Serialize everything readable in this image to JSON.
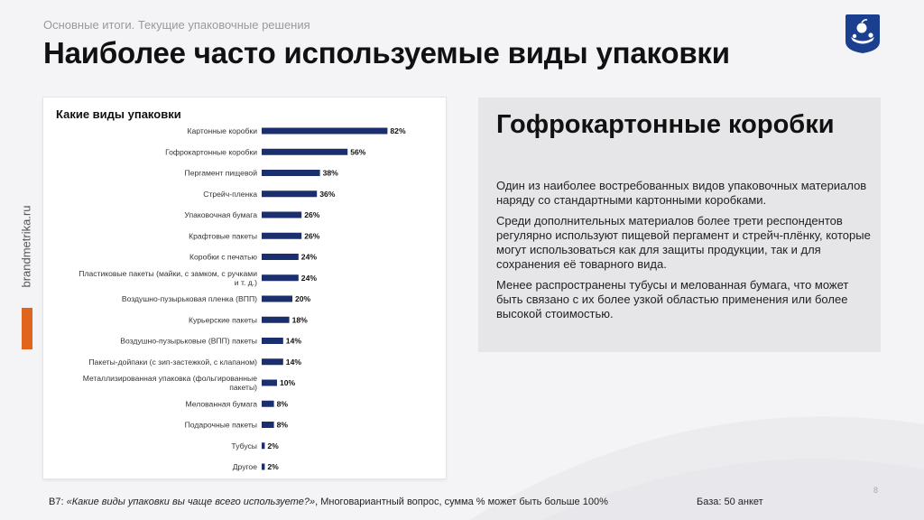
{
  "header": {
    "subtitle": "Основные итоги. Текущие упаковочные решения",
    "title": "Наиболее часто используемые виды упаковки"
  },
  "side": {
    "brand": "brandmetrika.ru"
  },
  "colors": {
    "bar": "#1b2f6e",
    "accent": "#e0661f",
    "logo_bg": "#1b3f8f"
  },
  "chart_data": {
    "type": "bar",
    "orientation": "horizontal",
    "title": "Какие виды упаковки",
    "value_suffix": "%",
    "xlim": [
      0,
      100
    ],
    "categories": [
      "Картонные коробки",
      "Гофрокартонные коробки",
      "Пергамент пищевой",
      "Стрейч-пленка",
      "Упаковочная бумага",
      "Крафтовые пакеты",
      "Коробки с печатью",
      [
        "Пластиковые пакеты (майки, с замком, с ручками",
        "и т. д.)"
      ],
      "Воздушно-пузырьковая пленка (ВПП)",
      "Курьерские пакеты",
      "Воздушно-пузырьковые (ВПП) пакеты",
      "Пакеты-дойпаки (с зип-застежкой, с клапаном)",
      [
        "Металлизированная упаковка (фольгированные",
        "пакеты)"
      ],
      "Мелованная бумага",
      "Подарочные пакеты",
      "Тубусы",
      "Другое"
    ],
    "values": [
      82,
      56,
      38,
      36,
      26,
      26,
      24,
      24,
      20,
      18,
      14,
      14,
      10,
      8,
      8,
      2,
      2
    ],
    "value_labels": [
      "82%",
      "56%",
      "38%",
      "36%",
      "26%",
      "26%",
      "24%",
      "24%",
      "20%",
      "18%",
      "14%",
      "14%",
      "10%",
      "8%",
      "8%",
      "2%",
      "2%"
    ]
  },
  "panel": {
    "heading": "Гофрокартонные коробки",
    "paragraphs": [
      "Один из наиболее востребованных видов упаковочных материалов наряду со стандартными картонными коробками.",
      "Среди дополнительных материалов более трети респондентов регулярно используют пищевой пергамент и стрейч-плёнку, которые могут использоваться как для защиты продукции, так и для сохранения её товарного вида.",
      "Менее распространены тубусы и мелованная бумага, что может быть связано с их более узкой областью применения или более высокой стоимостью."
    ]
  },
  "footer": {
    "prefix": "В7: ",
    "question": "«Какие виды упаковки вы чаще всего используете?»",
    "note": ", Многовариантный вопрос, сумма % может быть больше 100%",
    "base": "База: 50 анкет",
    "page": "8"
  }
}
